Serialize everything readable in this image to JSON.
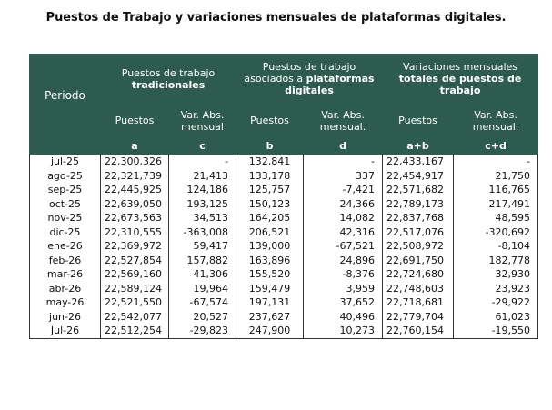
{
  "title": "Puestos de Trabajo y variaciones mensuales de plataformas digitales.",
  "header": {
    "period": "Periodo",
    "group1_line1": "Puestos de trabajo",
    "group1_line2": "tradicionales",
    "group2_line1": "Puestos de trabajo",
    "group2_line2": "asociados a",
    "group2_line3": "plataformas",
    "group2_line4": "digitales",
    "group3_line1": "Variaciones mensuales",
    "group3_line2": "totales de puestos de",
    "group3_line3": "trabajo",
    "sub_puestos": "Puestos",
    "sub_var1": "Var. Abs.",
    "sub_var2": "mensual",
    "sub_var2_dot": "mensual.",
    "letter_a": "a",
    "letter_c": "c",
    "letter_b": "b",
    "letter_d": "d",
    "letter_ab": "a+b",
    "letter_cd": "c+d"
  },
  "rows": [
    {
      "period": "jul-25",
      "a": "22,300,326",
      "c": "-",
      "b": "132,841",
      "d": "-",
      "ab": "22,433,167",
      "cd": "-"
    },
    {
      "period": "ago-25",
      "a": "22,321,739",
      "c": "21,413",
      "b": "133,178",
      "d": "337",
      "ab": "22,454,917",
      "cd": "21,750"
    },
    {
      "period": "sep-25",
      "a": "22,445,925",
      "c": "124,186",
      "b": "125,757",
      "d": "-7,421",
      "ab": "22,571,682",
      "cd": "116,765"
    },
    {
      "period": "oct-25",
      "a": "22,639,050",
      "c": "193,125",
      "b": "150,123",
      "d": "24,366",
      "ab": "22,789,173",
      "cd": "217,491"
    },
    {
      "period": "nov-25",
      "a": "22,673,563",
      "c": "34,513",
      "b": "164,205",
      "d": "14,082",
      "ab": "22,837,768",
      "cd": "48,595"
    },
    {
      "period": "dic-25",
      "a": "22,310,555",
      "c": "-363,008",
      "b": "206,521",
      "d": "42,316",
      "ab": "22,517,076",
      "cd": "-320,692"
    },
    {
      "period": "ene-26",
      "a": "22,369,972",
      "c": "59,417",
      "b": "139,000",
      "d": "-67,521",
      "ab": "22,508,972",
      "cd": "-8,104"
    },
    {
      "period": "feb-26",
      "a": "22,527,854",
      "c": "157,882",
      "b": "163,896",
      "d": "24,896",
      "ab": "22,691,750",
      "cd": "182,778"
    },
    {
      "period": "mar-26",
      "a": "22,569,160",
      "c": "41,306",
      "b": "155,520",
      "d": "-8,376",
      "ab": "22,724,680",
      "cd": "32,930"
    },
    {
      "period": "abr-26",
      "a": "22,589,124",
      "c": "19,964",
      "b": "159,479",
      "d": "3,959",
      "ab": "22,748,603",
      "cd": "23,923"
    },
    {
      "period": "may-26",
      "a": "22,521,550",
      "c": "-67,574",
      "b": "197,131",
      "d": "37,652",
      "ab": "22,718,681",
      "cd": "-29,922"
    },
    {
      "period": "jun-26",
      "a": "22,542,077",
      "c": "20,527",
      "b": "237,627",
      "d": "40,496",
      "ab": "22,779,704",
      "cd": "61,023"
    },
    {
      "period": "Jul-26",
      "a": "22,512,254",
      "c": "-29,823",
      "b": "247,900",
      "d": "10,273",
      "ab": "22,760,154",
      "cd": "-19,550"
    }
  ],
  "colors": {
    "header_bg": "#2d5b4e",
    "header_text": "#ffffff"
  }
}
